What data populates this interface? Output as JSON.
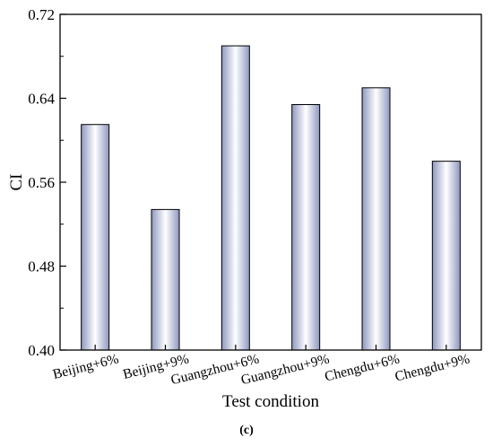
{
  "chart_data": {
    "type": "bar",
    "categories": [
      "Beijing+6%",
      "Beijing+9%",
      "Guangzhou+6%",
      "Guangzhou+9%",
      "Chengdu+6%",
      "Chengdu+9%"
    ],
    "values": [
      0.615,
      0.534,
      0.69,
      0.634,
      0.65,
      0.58
    ],
    "xlabel": "Test condition",
    "ylabel": "CI",
    "ylim": [
      0.4,
      0.72
    ],
    "yticks": [
      "0.40",
      "0.48",
      "0.56",
      "0.64",
      "0.72"
    ],
    "grid": false,
    "bar_fill": "gradient",
    "bar_gradient_colors": [
      "#8e98bf",
      "#ffffff",
      "#8e98bf"
    ]
  },
  "caption": "(c)"
}
